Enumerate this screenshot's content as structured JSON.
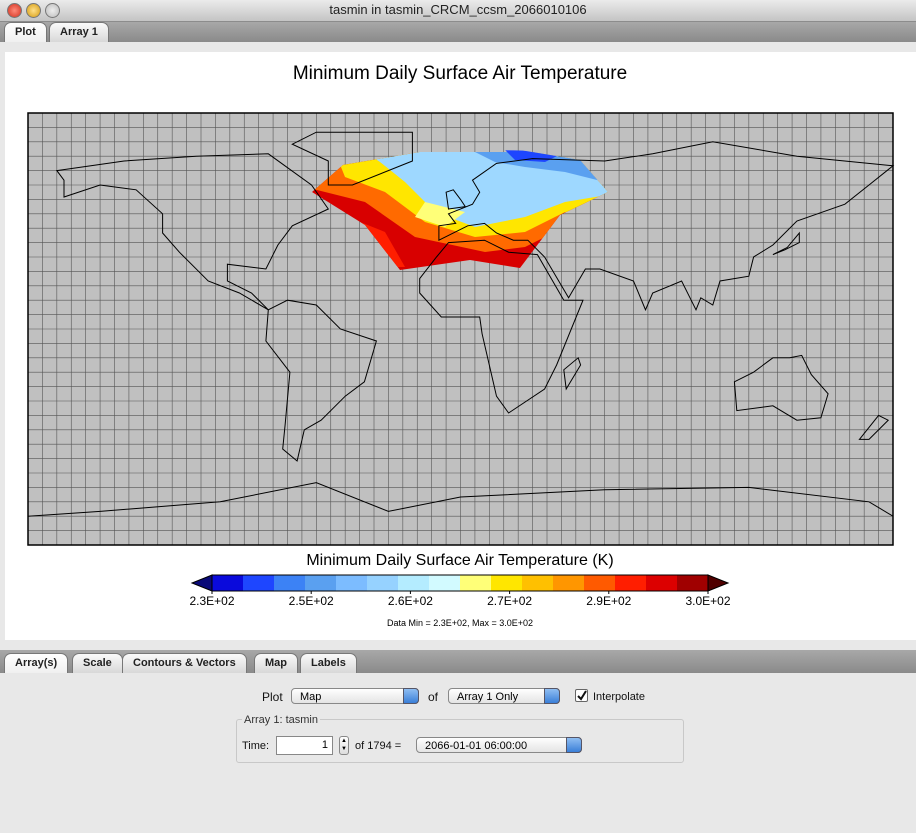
{
  "window": {
    "title": "tasmin in tasmin_CRCM_ccsm_2066010106"
  },
  "top_tabs": [
    "Plot",
    "Array 1"
  ],
  "plot": {
    "title": "Minimum Daily Surface Air Temperature",
    "colorbar": {
      "title": "Minimum Daily Surface Air Temperature (K)",
      "labels": [
        "2.3E+02",
        "2.5E+02",
        "2.6E+02",
        "2.7E+02",
        "2.9E+02",
        "3.0E+02"
      ],
      "colors": [
        "#0a0adc",
        "#1e46ff",
        "#3c82f5",
        "#5aa0f0",
        "#7cbcff",
        "#96d2ff",
        "#b4ecff",
        "#d2faff",
        "#ffff78",
        "#ffe600",
        "#ffc000",
        "#ff9600",
        "#ff5a00",
        "#ff1e00",
        "#dc0000",
        "#a00000"
      ]
    },
    "data_range": "Data Min = 2.3E+02, Max = 3.0E+02"
  },
  "bottom_tabs": [
    "Array(s)",
    "Scale",
    "Contours & Vectors",
    "Map",
    "Labels"
  ],
  "controls": {
    "plot_label": "Plot",
    "plot_type": "Map",
    "of_label": "of",
    "array_choice": "Array 1 Only",
    "interpolate": {
      "label": "Interpolate",
      "checked": true
    },
    "group_title": "Array 1: tasmin",
    "time_label": "Time:",
    "time_index": 1,
    "time_count_label": "of 1794 =",
    "time_value": "2066-01-01 06:00:00"
  }
}
